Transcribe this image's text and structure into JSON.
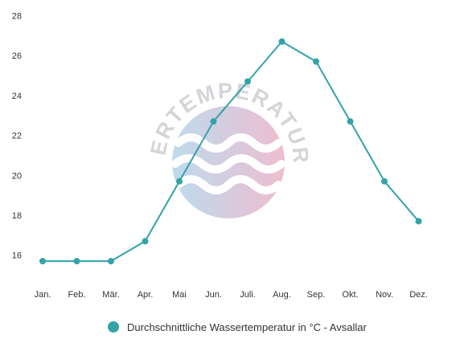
{
  "chart_data": {
    "type": "line",
    "categories": [
      "Jan.",
      "Feb.",
      "Mär.",
      "Apr.",
      "Mai",
      "Jun.",
      "Juli.",
      "Aug.",
      "Sep.",
      "Okt.",
      "Nov.",
      "Dez."
    ],
    "series": [
      {
        "name": "Durchschnittliche Wassertemperatur in °C - Avsallar",
        "values": [
          15.7,
          15.7,
          15.7,
          16.7,
          19.7,
          22.7,
          24.7,
          26.7,
          25.7,
          22.7,
          19.7,
          17.7
        ]
      }
    ],
    "y_ticks": [
      16,
      18,
      20,
      22,
      24,
      26,
      28
    ],
    "ylim": [
      14.9,
      28.3
    ],
    "grid": false,
    "legend_position": "bottom-center",
    "series_color": "#33a3a8"
  },
  "watermark": {
    "text": "WASSERTEMPERATUR.ORG",
    "gradient_colors": [
      "#a8cfe8",
      "#e8a8c0"
    ]
  }
}
